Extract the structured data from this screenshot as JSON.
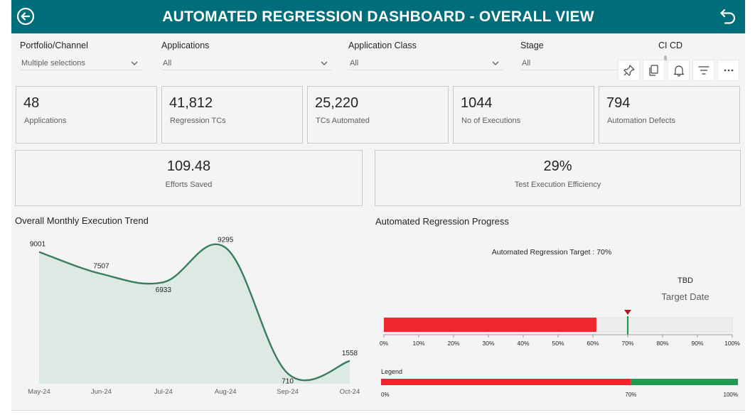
{
  "header": {
    "title": "AUTOMATED REGRESSION DASHBOARD - OVERALL VIEW",
    "back_icon": "back-arrow-circle-icon",
    "reset_icon": "undo-arrow-icon"
  },
  "filters": [
    {
      "label": "Portfolio/Channel",
      "value": "Multiple selections"
    },
    {
      "label": "Applications",
      "value": "All"
    },
    {
      "label": "Application Class",
      "value": "All"
    },
    {
      "label": "Stage",
      "value": "All"
    },
    {
      "label": "CI CD",
      "value": ""
    }
  ],
  "toolbar": {
    "cicd_fragment": "ll",
    "icons": [
      "pin-icon",
      "copy-icon",
      "bell-icon",
      "filter-icon",
      "more-options-icon"
    ]
  },
  "kpis": [
    {
      "value": "48",
      "caption": "Applications"
    },
    {
      "value": "41,812",
      "caption": "Regression TCs"
    },
    {
      "value": "25,220",
      "caption": "TCs Automated"
    },
    {
      "value": "1044",
      "caption": "No of Executions"
    },
    {
      "value": "794",
      "caption": "Automation Defects"
    }
  ],
  "kpis_wide": [
    {
      "value": "109.48",
      "caption": "Efforts Saved"
    },
    {
      "value": "29%",
      "caption": "Test Execution Efficiency"
    }
  ],
  "trend": {
    "title": "Overall Monthly Execution Trend"
  },
  "progress": {
    "title": "Automated Regression Progress",
    "target_label": "Automated Regression Target : 70%",
    "target_date_value": "TBD",
    "target_date_caption": "Target Date",
    "legend_title": "Legend",
    "legend_ticks": [
      "0%",
      "70%",
      "100%"
    ]
  },
  "colors": {
    "header": "#006e7a",
    "line": "#3b7d5f",
    "area": "#dde9e3",
    "bar_red": "#ef2530",
    "bar_green": "#1f9a4f",
    "marker": "#b0191f"
  },
  "chart_data": [
    {
      "type": "area",
      "title": "Overall Monthly Execution Trend",
      "categories": [
        "May-24",
        "Jun-24",
        "Jul-24",
        "Aug-24",
        "Sep-24",
        "Oct-24"
      ],
      "series": [
        {
          "values": [
            9001,
            7507,
            6933,
            9295,
            710,
            1558
          ]
        }
      ]
    },
    {
      "type": "bar",
      "title": "Automated Regression Progress",
      "value": 61,
      "target": 70,
      "xlim": [
        0,
        100
      ],
      "ticks": [
        "0%",
        "10%",
        "20%",
        "30%",
        "40%",
        "50%",
        "60%",
        "70%",
        "80%",
        "90%",
        "100%"
      ]
    }
  ]
}
